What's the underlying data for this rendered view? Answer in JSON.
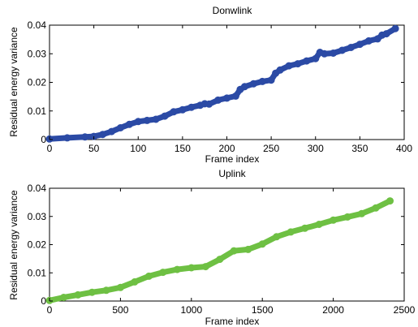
{
  "chart_data": [
    {
      "type": "scatter",
      "title": "Donwlink",
      "xlabel": "Frame index",
      "ylabel": "Residual energy variance",
      "xlim": [
        0,
        400
      ],
      "ylim": [
        0,
        0.04
      ],
      "xticks": [
        0,
        50,
        100,
        150,
        200,
        250,
        300,
        350,
        400
      ],
      "yticks": [
        0,
        0.01,
        0.02,
        0.03,
        0.04
      ],
      "xtick_labels": [
        "0",
        "50",
        "100",
        "150",
        "200",
        "250",
        "300",
        "350",
        "400"
      ],
      "ytick_labels": [
        "0",
        "0.01",
        "0.02",
        "0.03",
        "0.04"
      ],
      "grid": false,
      "series": [
        {
          "color": "#2b4aa5",
          "x": [
            0,
            20,
            40,
            50,
            60,
            70,
            80,
            90,
            100,
            110,
            120,
            130,
            140,
            150,
            160,
            170,
            175,
            180,
            190,
            200,
            210,
            215,
            220,
            230,
            240,
            250,
            255,
            260,
            270,
            280,
            290,
            300,
            305,
            310,
            320,
            330,
            340,
            350,
            360,
            370,
            375,
            380,
            390
          ],
          "y": [
            0.0002,
            0.0006,
            0.0009,
            0.0011,
            0.0018,
            0.0028,
            0.0041,
            0.0053,
            0.0063,
            0.0067,
            0.0071,
            0.0082,
            0.0097,
            0.0104,
            0.0113,
            0.012,
            0.0125,
            0.0124,
            0.0138,
            0.0145,
            0.0152,
            0.0175,
            0.0185,
            0.0195,
            0.0203,
            0.0208,
            0.0232,
            0.0243,
            0.0258,
            0.0265,
            0.0275,
            0.0283,
            0.0305,
            0.03,
            0.0302,
            0.0312,
            0.0322,
            0.0333,
            0.0345,
            0.0352,
            0.0365,
            0.037,
            0.0388
          ]
        }
      ]
    },
    {
      "type": "scatter",
      "title": "Uplink",
      "xlabel": "Frame index",
      "ylabel": "Residual energy variance",
      "xlim": [
        0,
        2500
      ],
      "ylim": [
        0,
        0.04
      ],
      "xticks": [
        0,
        500,
        1000,
        1500,
        2000,
        2500
      ],
      "yticks": [
        0,
        0.01,
        0.02,
        0.03,
        0.04
      ],
      "xtick_labels": [
        "0",
        "500",
        "1000",
        "1500",
        "2000",
        "2500"
      ],
      "ytick_labels": [
        "0",
        "0.01",
        "0.02",
        "0.03",
        "0.04"
      ],
      "grid": false,
      "series": [
        {
          "color": "#6ec043",
          "x": [
            0,
            100,
            200,
            300,
            400,
            500,
            600,
            700,
            800,
            900,
            1000,
            1100,
            1200,
            1300,
            1400,
            1500,
            1600,
            1700,
            1800,
            1900,
            2000,
            2100,
            2200,
            2300,
            2400
          ],
          "y": [
            0.0002,
            0.0013,
            0.0022,
            0.0031,
            0.0038,
            0.0048,
            0.0068,
            0.0088,
            0.0102,
            0.0112,
            0.0118,
            0.0122,
            0.0148,
            0.0178,
            0.0183,
            0.0202,
            0.0228,
            0.0245,
            0.0258,
            0.0272,
            0.0287,
            0.0298,
            0.031,
            0.033,
            0.0355
          ]
        }
      ]
    }
  ]
}
